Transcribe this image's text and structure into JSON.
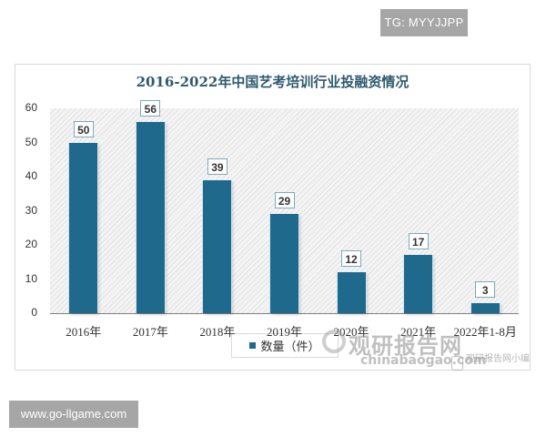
{
  "badges": {
    "top_right": "TG: MYYJJPP",
    "bottom_left": "www.go-llgame.com"
  },
  "watermark": {
    "brand_cn": "观研报告网",
    "brand_en": "chinabaogao.com",
    "small_text": "观研报告网小编"
  },
  "colors": {
    "bar": "#1f6a8c",
    "title": "#2e5a6e",
    "badge_bg": "#a6a6a6"
  },
  "chart_data": {
    "type": "bar",
    "title": "2016-2022年中国艺考培训行业投融资情况",
    "xlabel": "",
    "ylabel": "",
    "ylim": [
      0,
      60
    ],
    "yticks": [
      0,
      10,
      20,
      30,
      40,
      50,
      60
    ],
    "ytick_labels": [
      "0",
      "10",
      "20",
      "30",
      "40",
      "50",
      "60"
    ],
    "categories": [
      "2016年",
      "2017年",
      "2018年",
      "2019年",
      "2020年",
      "2021年",
      "2022年1-8月"
    ],
    "series": [
      {
        "name": "数量（件）",
        "values": [
          50,
          56,
          39,
          29,
          12,
          17,
          3
        ]
      }
    ],
    "data_labels": [
      "50",
      "56",
      "39",
      "29",
      "12",
      "17",
      "3"
    ],
    "legend": {
      "position": "bottom",
      "entries": [
        "数量（件）"
      ]
    },
    "grid": false,
    "background": "diagonal hatch"
  }
}
